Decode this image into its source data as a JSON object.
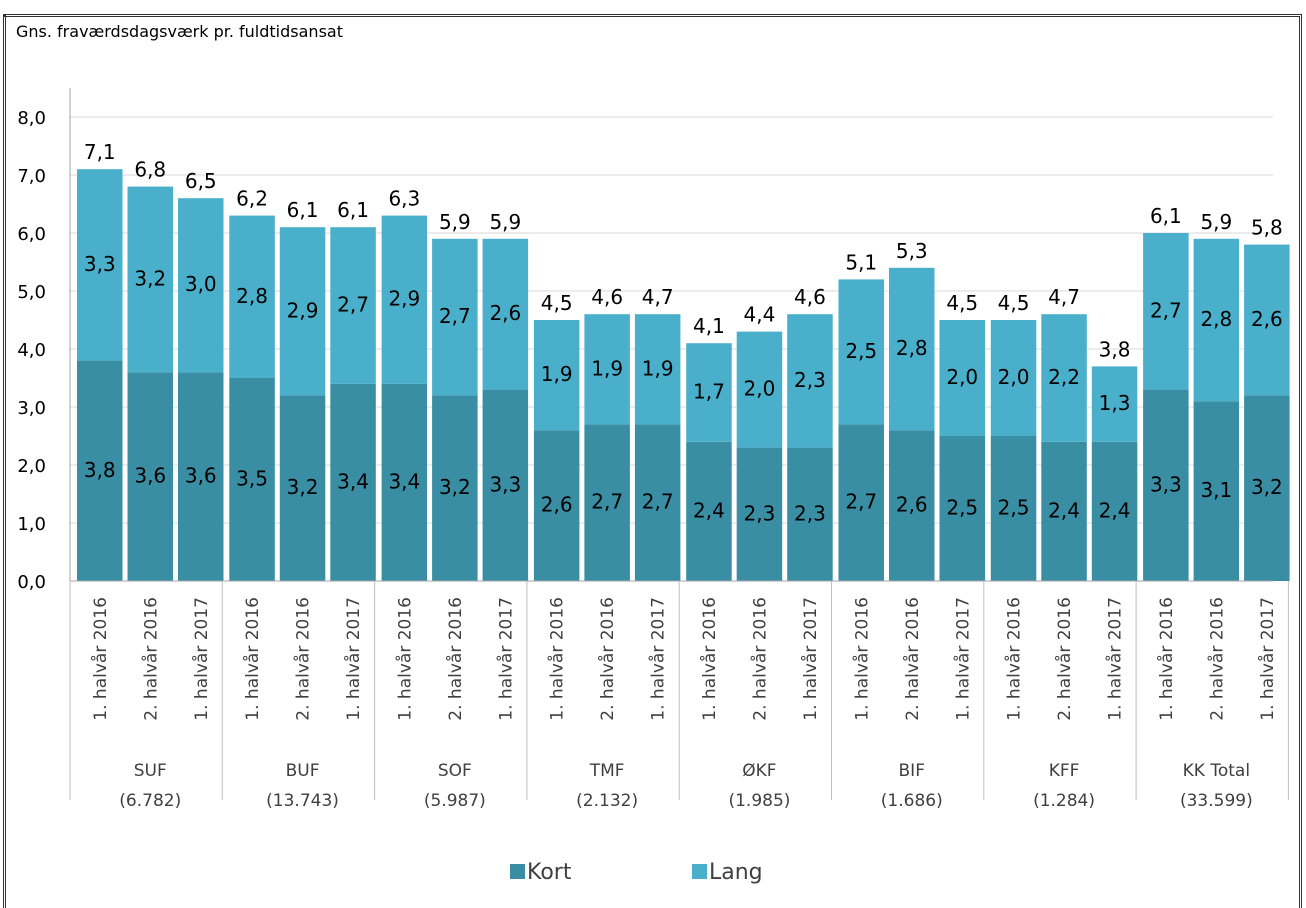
{
  "chart_data": {
    "type": "bar",
    "stacked": true,
    "title": "Gns. fraværdsdagsværk pr. fuldtidsansat",
    "ylim": [
      0,
      8
    ],
    "yticks": [
      "0,0",
      "1,0",
      "2,0",
      "3,0",
      "4,0",
      "5,0",
      "6,0",
      "7,0",
      "8,0"
    ],
    "legend_position": "bottom",
    "colors": {
      "kort": "#3a8ea4",
      "lang": "#4aafca"
    },
    "series": [
      {
        "name": "Kort",
        "key": "kort"
      },
      {
        "name": "Lang",
        "key": "lang"
      }
    ],
    "groups": [
      {
        "name": "SUF",
        "count": "(6.782)",
        "bars": [
          {
            "period": "1. halvår 2016",
            "kort": 3.8,
            "lang": 3.3,
            "kort_label": "3,8",
            "lang_label": "3,3",
            "total_label": "7,1"
          },
          {
            "period": "2. halvår 2016",
            "kort": 3.6,
            "lang": 3.2,
            "kort_label": "3,6",
            "lang_label": "3,2",
            "total_label": "6,8"
          },
          {
            "period": "1. halvår 2017",
            "kort": 3.6,
            "lang": 3.0,
            "kort_label": "3,6",
            "lang_label": "3,0",
            "total_label": "6,5"
          }
        ]
      },
      {
        "name": "BUF",
        "count": "(13.743)",
        "bars": [
          {
            "period": "1. halvår 2016",
            "kort": 3.5,
            "lang": 2.8,
            "kort_label": "3,5",
            "lang_label": "2,8",
            "total_label": "6,2"
          },
          {
            "period": "2. halvår 2016",
            "kort": 3.2,
            "lang": 2.9,
            "kort_label": "3,2",
            "lang_label": "2,9",
            "total_label": "6,1"
          },
          {
            "period": "1. halvår 2017",
            "kort": 3.4,
            "lang": 2.7,
            "kort_label": "3,4",
            "lang_label": "2,7",
            "total_label": "6,1"
          }
        ]
      },
      {
        "name": "SOF",
        "count": "(5.987)",
        "bars": [
          {
            "period": "1. halvår 2016",
            "kort": 3.4,
            "lang": 2.9,
            "kort_label": "3,4",
            "lang_label": "2,9",
            "total_label": "6,3"
          },
          {
            "period": "2. halvår 2016",
            "kort": 3.2,
            "lang": 2.7,
            "kort_label": "3,2",
            "lang_label": "2,7",
            "total_label": "5,9"
          },
          {
            "period": "1. halvår 2017",
            "kort": 3.3,
            "lang": 2.6,
            "kort_label": "3,3",
            "lang_label": "2,6",
            "total_label": "5,9"
          }
        ]
      },
      {
        "name": "TMF",
        "count": "(2.132)",
        "bars": [
          {
            "period": "1. halvår 2016",
            "kort": 2.6,
            "lang": 1.9,
            "kort_label": "2,6",
            "lang_label": "1,9",
            "total_label": "4,5"
          },
          {
            "period": "2. halvår 2016",
            "kort": 2.7,
            "lang": 1.9,
            "kort_label": "2,7",
            "lang_label": "1,9",
            "total_label": "4,6"
          },
          {
            "period": "1. halvår 2017",
            "kort": 2.7,
            "lang": 1.9,
            "kort_label": "2,7",
            "lang_label": "1,9",
            "total_label": "4,7"
          }
        ]
      },
      {
        "name": "ØKF",
        "count": "(1.985)",
        "bars": [
          {
            "period": "1. halvår 2016",
            "kort": 2.4,
            "lang": 1.7,
            "kort_label": "2,4",
            "lang_label": "1,7",
            "total_label": "4,1"
          },
          {
            "period": "2. halvår 2016",
            "kort": 2.3,
            "lang": 2.0,
            "kort_label": "2,3",
            "lang_label": "2,0",
            "total_label": "4,4"
          },
          {
            "period": "1. halvår 2017",
            "kort": 2.3,
            "lang": 2.3,
            "kort_label": "2,3",
            "lang_label": "2,3",
            "total_label": "4,6"
          }
        ]
      },
      {
        "name": "BIF",
        "count": "(1.686)",
        "bars": [
          {
            "period": "1. halvår 2016",
            "kort": 2.7,
            "lang": 2.5,
            "kort_label": "2,7",
            "lang_label": "2,5",
            "total_label": "5,1"
          },
          {
            "period": "2. halvår 2016",
            "kort": 2.6,
            "lang": 2.8,
            "kort_label": "2,6",
            "lang_label": "2,8",
            "total_label": "5,3"
          },
          {
            "period": "1. halvår 2017",
            "kort": 2.5,
            "lang": 2.0,
            "kort_label": "2,5",
            "lang_label": "2,0",
            "total_label": "4,5"
          }
        ]
      },
      {
        "name": "KFF",
        "count": "(1.284)",
        "bars": [
          {
            "period": "1. halvår 2016",
            "kort": 2.5,
            "lang": 2.0,
            "kort_label": "2,5",
            "lang_label": "2,0",
            "total_label": "4,5"
          },
          {
            "period": "2. halvår 2016",
            "kort": 2.4,
            "lang": 2.2,
            "kort_label": "2,4",
            "lang_label": "2,2",
            "total_label": "4,7"
          },
          {
            "period": "1. halvår 2017",
            "kort": 2.4,
            "lang": 1.3,
            "kort_label": "2,4",
            "lang_label": "1,3",
            "total_label": "3,8"
          }
        ]
      },
      {
        "name": "KK Total",
        "count": "(33.599)",
        "bars": [
          {
            "period": "1. halvår 2016",
            "kort": 3.3,
            "lang": 2.7,
            "kort_label": "3,3",
            "lang_label": "2,7",
            "total_label": "6,1"
          },
          {
            "period": "2. halvår 2016",
            "kort": 3.1,
            "lang": 2.8,
            "kort_label": "3,1",
            "lang_label": "2,8",
            "total_label": "5,9"
          },
          {
            "period": "1. halvår 2017",
            "kort": 3.2,
            "lang": 2.6,
            "kort_label": "3,2",
            "lang_label": "2,6",
            "total_label": "5,8"
          }
        ]
      }
    ]
  }
}
